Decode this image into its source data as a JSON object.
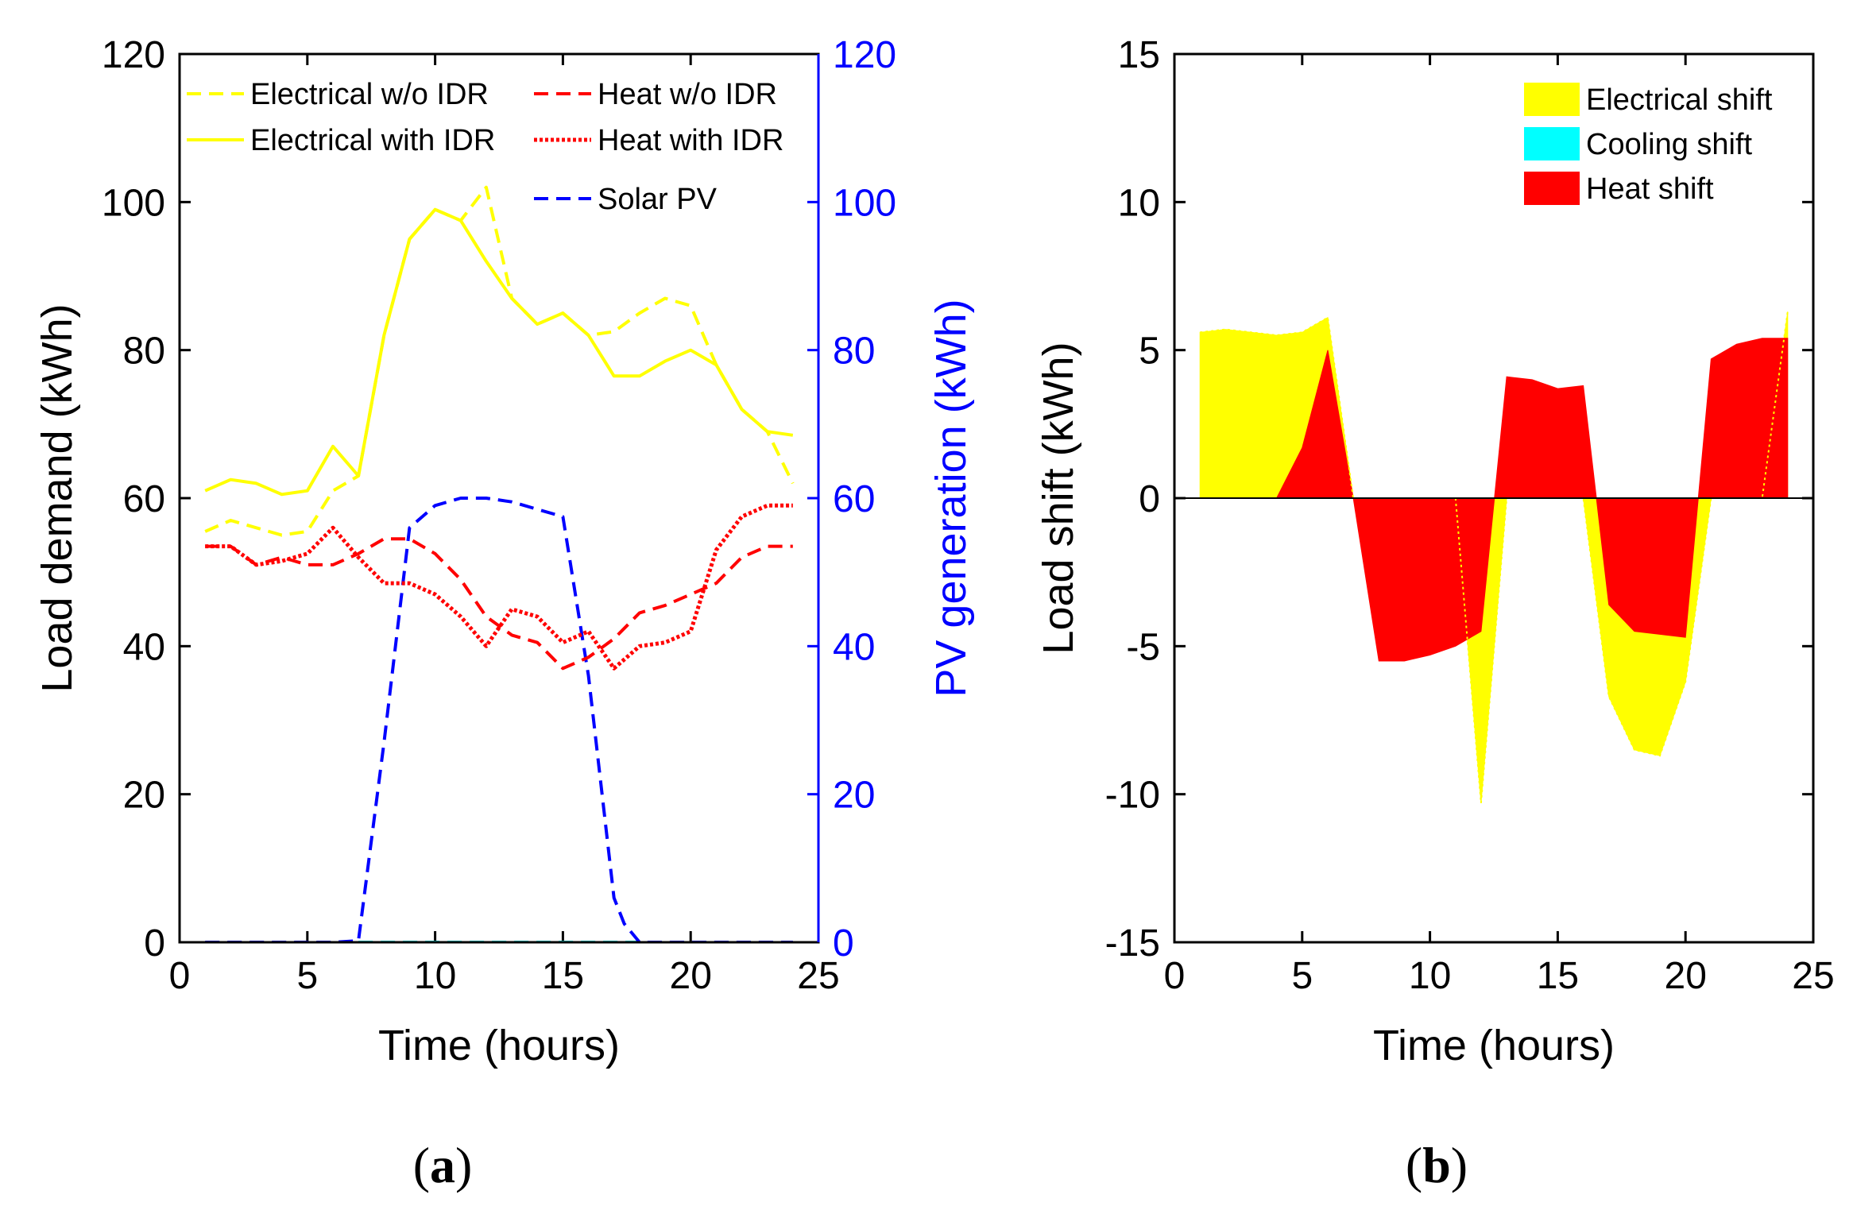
{
  "chart_data": [
    {
      "type": "line",
      "panel_label": "a",
      "xlabel": "Time (hours)",
      "ylabel": "Load demand (kWh)",
      "y2label": "PV generation (kWh)",
      "xlim": [
        0,
        25
      ],
      "ylim": [
        0,
        120
      ],
      "y2lim": [
        0,
        120
      ],
      "xticks": [
        0,
        5,
        10,
        15,
        20,
        25
      ],
      "yticks": [
        0,
        20,
        40,
        60,
        80,
        100,
        120
      ],
      "y2ticks": [
        0,
        20,
        40,
        60,
        80,
        100,
        120
      ],
      "legend_position": "top",
      "x": [
        1,
        2,
        3,
        4,
        5,
        6,
        7,
        8,
        9,
        10,
        11,
        12,
        13,
        14,
        15,
        16,
        17,
        18,
        19,
        20,
        21,
        22,
        23,
        24
      ],
      "series": [
        {
          "name": "Electrical w/o IDR",
          "color": "#ffff00",
          "style": "dashed",
          "axis": "left",
          "values": [
            55.5,
            57,
            56,
            55,
            55.5,
            61,
            63,
            82,
            95,
            99,
            97.5,
            102,
            87,
            83.5,
            85,
            82,
            82.5,
            85,
            87,
            86,
            78,
            72,
            69,
            62
          ]
        },
        {
          "name": "Heat w/o IDR",
          "color": "#ff0000",
          "style": "dashed",
          "axis": "left",
          "values": [
            53.5,
            53.5,
            51,
            52,
            51,
            51,
            52.5,
            54.5,
            54.5,
            52.5,
            49,
            44,
            41.5,
            40.5,
            37,
            38.5,
            41,
            44.5,
            45.5,
            47,
            48.5,
            52,
            53.5,
            53.5
          ]
        },
        {
          "name": "Electrical with IDR",
          "color": "#ffff00",
          "style": "solid",
          "axis": "left",
          "values": [
            61,
            62.5,
            62,
            60.5,
            61,
            67,
            63,
            82,
            95,
            99,
            97.5,
            92,
            87,
            83.5,
            85,
            82,
            76.5,
            76.5,
            78.5,
            80,
            78,
            72,
            69,
            68.5
          ]
        },
        {
          "name": "Heat with IDR",
          "color": "#ff0000",
          "style": "dotted",
          "axis": "left",
          "values": [
            53.5,
            53.5,
            51,
            51.5,
            52.5,
            56,
            52,
            48.5,
            48.5,
            47,
            44,
            40,
            45,
            44,
            40.5,
            42,
            37,
            40,
            40.5,
            42,
            53,
            57.5,
            59,
            59
          ]
        },
        {
          "name": "Solar PV",
          "color": "#0000ff",
          "style": "dashed",
          "axis": "right",
          "x": [
            1,
            2,
            3,
            4,
            5,
            6,
            7,
            8,
            9,
            10,
            11,
            12,
            13,
            14,
            15,
            16,
            17,
            17.4,
            18,
            19,
            20,
            21,
            22,
            23,
            24
          ],
          "values": [
            0,
            0,
            0,
            0,
            0,
            0,
            0.2,
            27,
            56,
            59,
            60,
            60,
            59.5,
            58.5,
            57.5,
            36,
            6,
            2.5,
            0,
            0,
            0,
            0,
            0,
            0,
            0
          ]
        },
        {
          "name": "Cooling",
          "color": "#00ffff",
          "style": "dashed",
          "axis": "left",
          "in_legend": false,
          "x": [
            7,
            24
          ],
          "values": [
            0,
            0
          ]
        }
      ]
    },
    {
      "type": "area",
      "panel_label": "b",
      "xlabel": "Time (hours)",
      "ylabel": "Load shift (kWh)",
      "xlim": [
        0,
        25
      ],
      "ylim": [
        -15,
        15
      ],
      "xticks": [
        0,
        5,
        10,
        15,
        20,
        25
      ],
      "yticks": [
        -15,
        -10,
        -5,
        0,
        5,
        10,
        15
      ],
      "legend_position": "top-right",
      "series": [
        {
          "name": "Electrical shift",
          "color": "#ffff00",
          "x": [
            1,
            2,
            3,
            4,
            5,
            6,
            7,
            8,
            9,
            10,
            11,
            12,
            13,
            14,
            15,
            16,
            17,
            18,
            19,
            20,
            21,
            22,
            23,
            24
          ],
          "values": [
            5.6,
            5.7,
            5.6,
            5.5,
            5.6,
            6.1,
            0,
            0,
            0,
            0,
            0,
            -10.3,
            0,
            0,
            0,
            0,
            -6.7,
            -8.5,
            -8.7,
            -6.2,
            0,
            0,
            0,
            6.3
          ]
        },
        {
          "name": "Cooling shift",
          "color": "#00ffff",
          "x": [
            1,
            24
          ],
          "values": [
            0,
            0
          ]
        },
        {
          "name": "Heat shift",
          "color": "#ff0000",
          "x": [
            1,
            2,
            3,
            4,
            5,
            6,
            7,
            8,
            9,
            10,
            11,
            12,
            13,
            14,
            15,
            16,
            17,
            18,
            19,
            20,
            21,
            22,
            23,
            24
          ],
          "values": [
            0,
            0,
            0,
            0,
            1.7,
            5,
            0,
            -5.5,
            -5.5,
            -5.3,
            -5,
            -4.5,
            4.1,
            4,
            3.7,
            3.8,
            -3.6,
            -4.5,
            -4.6,
            -4.7,
            4.7,
            5.2,
            5.4,
            5.4
          ]
        }
      ]
    }
  ]
}
